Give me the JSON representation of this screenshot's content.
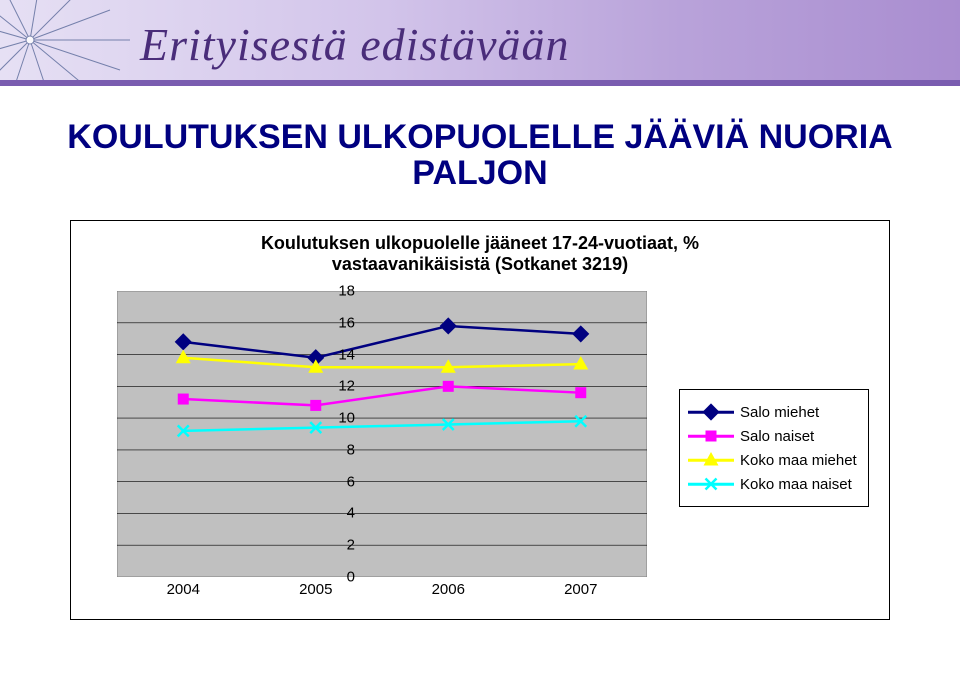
{
  "banner_script_text": "Erityisestä edistävään",
  "title": "KOULUTUKSEN ULKOPUOLELLE JÄÄVIÄ NUORIA\nPALJON",
  "title_color": "#000080",
  "title_fontsize": 34,
  "chart": {
    "type": "line",
    "title": "Koulutuksen ulkopuolelle jääneet 17-24-vuotiaat, %\nvastaavanikäisistä (Sotkanet 3219)",
    "title_fontsize": 18,
    "plot_background": "#c0c0c0",
    "grid_color": "#000000",
    "grid_linewidth": 0.6,
    "axis_color": "#808080",
    "x": {
      "categories": [
        "2004",
        "2005",
        "2006",
        "2007"
      ],
      "label_fontsize": 15
    },
    "y": {
      "min": 0,
      "max": 18,
      "tick_step": 2,
      "label_fontsize": 15
    },
    "series": [
      {
        "name": "Salo miehet",
        "values": [
          14.8,
          13.8,
          15.8,
          15.3
        ],
        "line_color": "#000080",
        "line_width": 2.5,
        "marker": "diamond",
        "marker_size": 12,
        "marker_color": "#000080"
      },
      {
        "name": "Salo naiset",
        "values": [
          11.2,
          10.8,
          12.0,
          11.6
        ],
        "line_color": "#ff00ff",
        "line_width": 2.5,
        "marker": "square",
        "marker_size": 11,
        "marker_color": "#ff00ff"
      },
      {
        "name": "Koko maa miehet",
        "values": [
          13.8,
          13.2,
          13.2,
          13.4
        ],
        "line_color": "#ffff00",
        "line_width": 2.5,
        "marker": "triangle",
        "marker_size": 12,
        "marker_color": "#ffff00"
      },
      {
        "name": "Koko maa naiset",
        "values": [
          9.2,
          9.4,
          9.6,
          9.8
        ],
        "line_color": "#00ffff",
        "line_width": 2.5,
        "marker": "x",
        "marker_size": 11,
        "marker_color": "#00ffff"
      }
    ],
    "legend": {
      "position": "right",
      "fontsize": 15,
      "border_color": "#000000",
      "background_color": "#ffffff"
    }
  }
}
